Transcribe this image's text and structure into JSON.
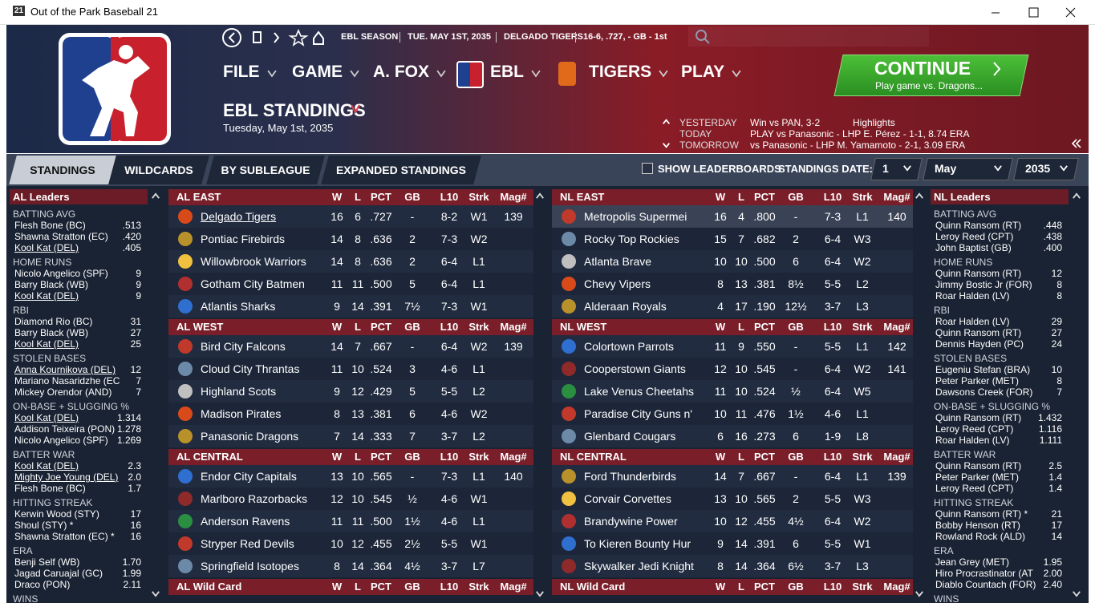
{
  "window": {
    "icon": "21",
    "title": "Out of the Park Baseball 21"
  },
  "header": {
    "season": [
      "EBL SEASON",
      "TUE. MAY 1ST, 2035",
      "DELGADO TIGERS",
      "16-6, .727, - GB - 1st"
    ],
    "menu": [
      "FILE",
      "GAME",
      "A. FOX",
      "EBL",
      "TIGERS",
      "PLAY"
    ],
    "page_title": "EBL STANDINGS",
    "date": "Tuesday, May 1st, 2035",
    "continue": {
      "label": "CONTINUE",
      "sub": "Play game vs. Dragons..."
    },
    "schedule": [
      {
        "label": "YESTERDAY",
        "text": "Win vs PAN, 3-2",
        "link": "Highlights"
      },
      {
        "label": "TODAY",
        "text": "PLAY vs Panasonic - LHP E. Pérez - 1-1, 8.74 ERA"
      },
      {
        "label": "TOMORROW",
        "text": "vs Panasonic - LHP M. Yamamoto - 2-1, 3.09 ERA"
      }
    ]
  },
  "tabs": [
    "STANDINGS",
    "WILDCARDS",
    "BY SUBLEAGUE",
    "EXPANDED STANDINGS"
  ],
  "toolbar": {
    "show_leaderboards": "SHOW LEADERBOARDS",
    "date_label": "STANDINGS DATE:",
    "day": "1",
    "month": "May",
    "year": "2035"
  },
  "leaders": [
    {
      "title": "AL Leaders",
      "categories": [
        {
          "name": "BATTING AVG",
          "rows": [
            [
              "Flesh Bone (BC)",
              ".513"
            ],
            [
              "Shawna Stratton (EC)",
              ".420"
            ],
            [
              "Kool Kat (DEL)",
              ".405"
            ]
          ]
        },
        {
          "name": "HOME RUNS",
          "rows": [
            [
              "Nicolo Angelico (SPF)",
              "9"
            ],
            [
              "Barry Black (WB)",
              "9"
            ],
            [
              "Kool Kat (DEL)",
              "9"
            ]
          ]
        },
        {
          "name": "RBI",
          "rows": [
            [
              "Diamond Rio (BC)",
              "31"
            ],
            [
              "Barry Black (WB)",
              "27"
            ],
            [
              "Kool Kat (DEL)",
              "25"
            ]
          ]
        },
        {
          "name": "STOLEN BASES",
          "rows": [
            [
              "Anna Kournikova (DEL)",
              "12"
            ],
            [
              "Mariano Nasaridzhe (EC",
              "7"
            ],
            [
              "Mickey Orendor (AND)",
              "7"
            ]
          ]
        },
        {
          "name": "ON-BASE + SLUGGING %",
          "rows": [
            [
              "Kool Kat (DEL)",
              "1.314"
            ],
            [
              "Addison Teixeira (PON)",
              "1.278"
            ],
            [
              "Nicolo Angelico (SPF)",
              "1.269"
            ]
          ]
        },
        {
          "name": "BATTER WAR",
          "rows": [
            [
              "Kool Kat (DEL)",
              "2.3"
            ],
            [
              "Mighty Joe Young (DEL)",
              "2.0"
            ],
            [
              "Flesh Bone (BC)",
              "1.7"
            ]
          ]
        },
        {
          "name": "HITTING STREAK",
          "rows": [
            [
              "Kerwin Wood (STY)",
              "17"
            ],
            [
              "Shoul (STY) *",
              "16"
            ],
            [
              "Shawna Stratton (EC) *",
              "16"
            ]
          ]
        },
        {
          "name": "ERA",
          "rows": [
            [
              "Benji Self (WB)",
              "1.70"
            ],
            [
              "Jagad Caruajal (GC)",
              "1.99"
            ],
            [
              "Draco (PON)",
              "2.11"
            ]
          ]
        },
        {
          "name": "WINS"
        }
      ]
    },
    {
      "title": "NL Leaders",
      "categories": [
        {
          "name": "BATTING AVG",
          "rows": [
            [
              "Quinn Ransom (RT)",
              ".448"
            ],
            [
              "Leroy Reed (CPT)",
              ".438"
            ],
            [
              "John Baptist (GB)",
              ".400"
            ]
          ]
        },
        {
          "name": "HOME RUNS",
          "rows": [
            [
              "Quinn Ransom (RT)",
              "12"
            ],
            [
              "Jimmy Bostic Jr (FOR)",
              "8"
            ],
            [
              "Roar Halden (LV)",
              "8"
            ]
          ]
        },
        {
          "name": "RBI",
          "rows": [
            [
              "Roar Halden (LV)",
              "29"
            ],
            [
              "Quinn Ransom (RT)",
              "27"
            ],
            [
              "Dennis Hayden (PC)",
              "24"
            ]
          ]
        },
        {
          "name": "STOLEN BASES",
          "rows": [
            [
              "Eugeniu Stefan (BRA)",
              "10"
            ],
            [
              "Peter Parker (MET)",
              "8"
            ],
            [
              "Dawsons Creek (FOR)",
              "7"
            ]
          ]
        },
        {
          "name": "ON-BASE + SLUGGING %",
          "rows": [
            [
              "Quinn Ransom (RT)",
              "1.432"
            ],
            [
              "Leroy Reed (CPT)",
              "1.116"
            ],
            [
              "Roar Halden (LV)",
              "1.111"
            ]
          ]
        },
        {
          "name": "BATTER WAR",
          "rows": [
            [
              "Quinn Ransom (RT)",
              "2.5"
            ],
            [
              "Peter Parker (MET)",
              "1.4"
            ],
            [
              "Leroy Reed (CPT)",
              "1.4"
            ]
          ]
        },
        {
          "name": "HITTING STREAK",
          "rows": [
            [
              "Quinn Ransom (RT) *",
              "21"
            ],
            [
              "Bobby Henson (RT)",
              "17"
            ],
            [
              "Rowland Rock (ALD)",
              "14"
            ]
          ]
        },
        {
          "name": "ERA",
          "rows": [
            [
              "Jean Grey (MET)",
              "1.95"
            ],
            [
              "Hiro Procrastinator (AT",
              "2.00"
            ],
            [
              "Diablo Countach (FOR)",
              "2.40"
            ]
          ]
        },
        {
          "name": "WINS"
        }
      ]
    }
  ],
  "standings": {
    "columns": [
      "W",
      "L",
      "PCT",
      "GB",
      "L10",
      "Strk",
      "Mag#"
    ],
    "leagues": [
      {
        "divisions": [
          {
            "name": "AL EAST",
            "teams": [
              [
                "Delgado Tigers",
                16,
                6,
                ".727",
                "-",
                "8-2",
                "W1",
                139
              ],
              [
                "Pontiac Firebirds",
                14,
                8,
                ".636",
                "2",
                "7-3",
                "W2"
              ],
              [
                "Willowbrook Warriors",
                14,
                8,
                ".636",
                "2",
                "6-4",
                "L1"
              ],
              [
                "Gotham City Batmen",
                11,
                11,
                ".500",
                "5",
                "6-4",
                "L1"
              ],
              [
                "Atlantis Sharks",
                9,
                14,
                ".391",
                "7½",
                "7-3",
                "W1"
              ]
            ]
          },
          {
            "name": "AL WEST",
            "teams": [
              [
                "Bird City Falcons",
                14,
                7,
                ".667",
                "-",
                "6-4",
                "W2",
                139
              ],
              [
                "Cloud City Thrantas",
                11,
                10,
                ".524",
                "3",
                "4-6",
                "L1"
              ],
              [
                "Highland Scots",
                9,
                12,
                ".429",
                "5",
                "5-5",
                "L2"
              ],
              [
                "Madison Pirates",
                8,
                13,
                ".381",
                "6",
                "4-6",
                "W2"
              ],
              [
                "Panasonic Dragons",
                7,
                14,
                ".333",
                "7",
                "3-7",
                "L2"
              ]
            ]
          },
          {
            "name": "AL CENTRAL",
            "teams": [
              [
                "Endor City Capitals",
                13,
                10,
                ".565",
                "-",
                "7-3",
                "L1",
                140
              ],
              [
                "Marlboro Razorbacks",
                12,
                10,
                ".545",
                "½",
                "4-6",
                "W1"
              ],
              [
                "Anderson Ravens",
                11,
                11,
                ".500",
                "1½",
                "4-6",
                "L1"
              ],
              [
                "Stryper Red Devils",
                10,
                12,
                ".455",
                "2½",
                "5-5",
                "W1"
              ],
              [
                "Springfield Isotopes",
                8,
                14,
                ".364",
                "4½",
                "3-7",
                "L7"
              ]
            ]
          },
          {
            "name": "AL Wild Card"
          }
        ]
      },
      {
        "divisions": [
          {
            "name": "NL EAST",
            "teams": [
              [
                "Metropolis Supermei",
                16,
                4,
                ".800",
                "-",
                "7-3",
                "L1",
                140
              ],
              [
                "Rocky Top Rockies",
                15,
                7,
                ".682",
                "2",
                "6-4",
                "W3"
              ],
              [
                "Atlanta Brave",
                10,
                10,
                ".500",
                "6",
                "6-4",
                "W2"
              ],
              [
                "Chevy Vipers",
                8,
                13,
                ".381",
                "8½",
                "5-5",
                "L2"
              ],
              [
                "Alderaan Royals",
                4,
                17,
                ".190",
                "12½",
                "3-7",
                "L3"
              ]
            ]
          },
          {
            "name": "NL WEST",
            "teams": [
              [
                "Colortown Parrots",
                11,
                9,
                ".550",
                "-",
                "5-5",
                "L1",
                142
              ],
              [
                "Cooperstown Giants",
                12,
                10,
                ".545",
                "-",
                "6-4",
                "W2",
                141
              ],
              [
                "Lake Venus Cheetahs",
                11,
                10,
                ".524",
                "½",
                "6-4",
                "W5"
              ],
              [
                "Paradise City Guns n'",
                10,
                11,
                ".476",
                "1½",
                "4-6",
                "L1"
              ],
              [
                "Glenbard Cougars",
                6,
                16,
                ".273",
                "6",
                "1-9",
                "L8"
              ]
            ]
          },
          {
            "name": "NL CENTRAL",
            "teams": [
              [
                "Ford Thunderbirds",
                14,
                7,
                ".667",
                "-",
                "6-4",
                "L1",
                139
              ],
              [
                "Corvair Corvettes",
                13,
                10,
                ".565",
                "2",
                "5-5",
                "W3"
              ],
              [
                "Brandywine Power",
                10,
                12,
                ".455",
                "4½",
                "6-4",
                "W2"
              ],
              [
                "To Kieren Bounty Hur",
                9,
                14,
                ".391",
                "6",
                "5-5",
                "W1"
              ],
              [
                "Skywalker Jedi Knight",
                8,
                14,
                ".364",
                "6½",
                "3-7",
                "L3"
              ]
            ]
          },
          {
            "name": "NL Wild Card"
          }
        ]
      }
    ]
  }
}
